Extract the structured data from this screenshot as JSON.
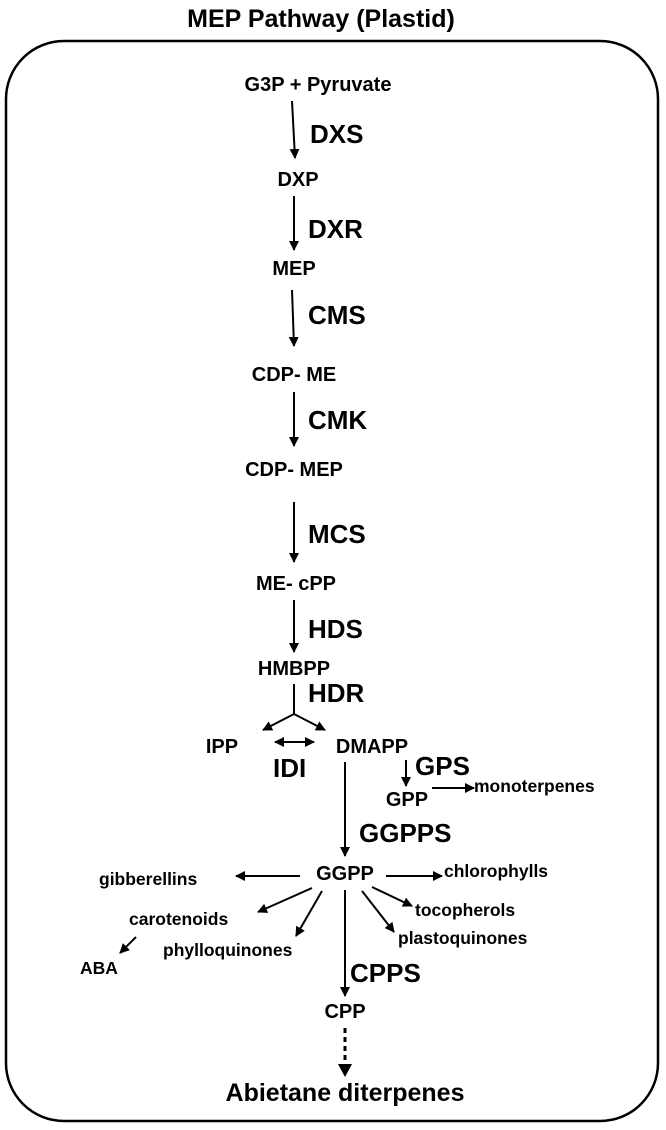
{
  "title": "MEP Pathway (Plastid)",
  "metabolites": {
    "start": "G3P + Pyruvate",
    "dxp": "DXP",
    "mep": "MEP",
    "cdp_me": "CDP- ME",
    "cdp_mep": "CDP- MEP",
    "me_cpp": "ME- cPP",
    "hmbpp": "HMBPP",
    "ipp": "IPP",
    "dmapp": "DMAPP",
    "gpp": "GPP",
    "ggpp": "GGPP",
    "cpp": "CPP"
  },
  "enzymes": {
    "dxs": "DXS",
    "dxr": "DXR",
    "cms": "CMS",
    "cmk": "CMK",
    "mcs": "MCS",
    "hds": "HDS",
    "hdr": "HDR",
    "idi": "IDI",
    "gps": "GPS",
    "ggpps": "GGPPS",
    "cpps": "CPPS"
  },
  "products": {
    "monoterpenes": "monoterpenes",
    "gibberellins": "gibberellins",
    "chlorophylls": "chlorophylls",
    "carotenoids": "carotenoids",
    "aba": "ABA",
    "phylloquinones": "phylloquinones",
    "tocopherols": "tocopherols",
    "plastoquinones": "plastoquinones"
  },
  "final_product": "Abietane diterpenes"
}
